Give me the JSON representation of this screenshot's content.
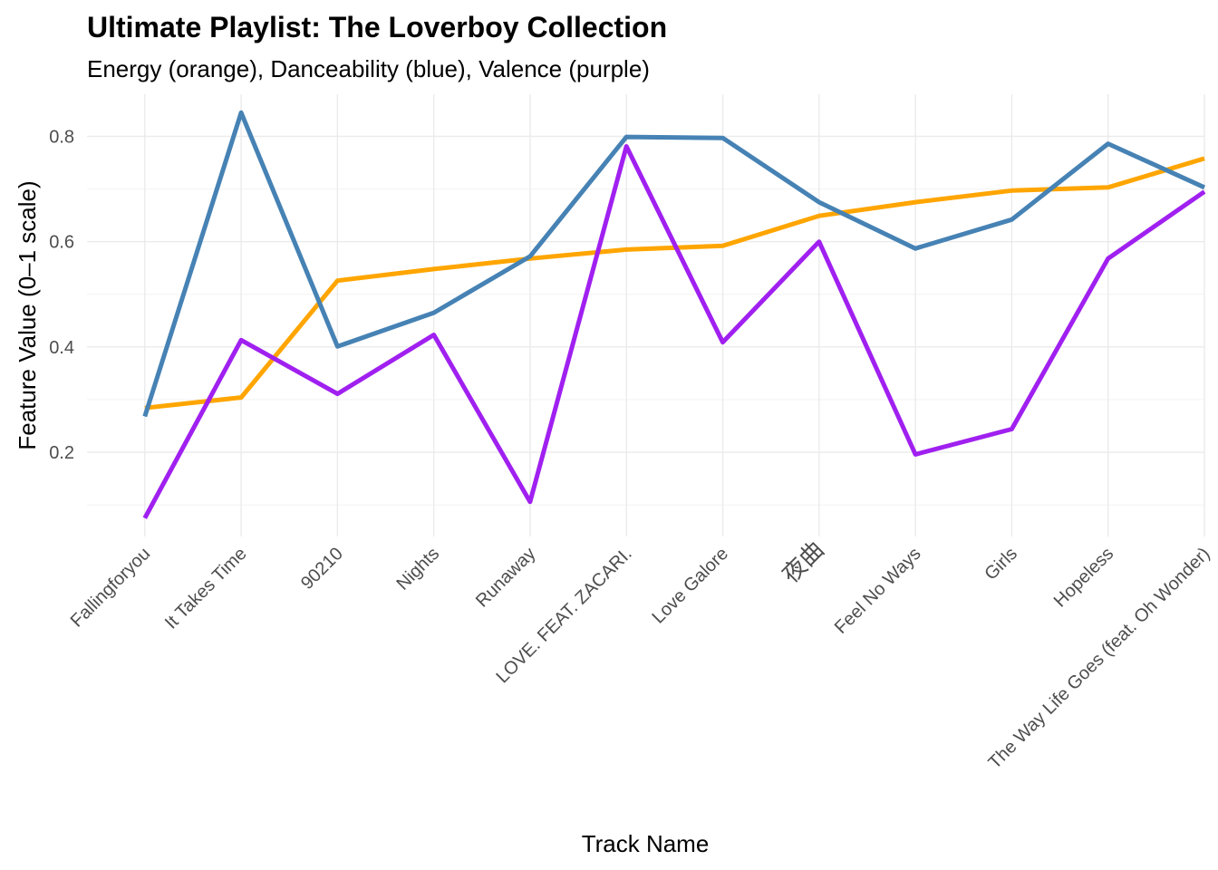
{
  "chart_data": {
    "type": "line",
    "title": "Ultimate Playlist: The Loverboy Collection",
    "subtitle": "Energy (orange), Danceability (blue), Valence (purple)",
    "xlabel": "Track Name",
    "ylabel": "Feature Value (0–1 scale)",
    "ylim": [
      0.04,
      0.88
    ],
    "y_ticks": [
      0.2,
      0.4,
      0.6,
      0.8
    ],
    "y_tick_labels": [
      "0.2",
      "0.4",
      "0.6",
      "0.8"
    ],
    "grid": true,
    "legend": "none",
    "categories": [
      "Fallingforyou",
      "It Takes Time",
      "90210",
      "Nights",
      "Runaway",
      "LOVE. FEAT. ZACARI.",
      "Love Galore",
      "夜曲",
      "Feel No Ways",
      "Girls",
      "Hopeless",
      "The Way Life Goes (feat. Oh Wonder)"
    ],
    "series": [
      {
        "name": "Energy",
        "color": "#FFA500",
        "values": [
          0.284,
          0.304,
          0.526,
          0.548,
          0.568,
          0.585,
          0.592,
          0.649,
          0.675,
          0.697,
          0.703,
          0.758
        ]
      },
      {
        "name": "Danceability",
        "color": "#4682B4",
        "values": [
          0.268,
          0.845,
          0.401,
          0.465,
          0.572,
          0.799,
          0.797,
          0.675,
          0.587,
          0.642,
          0.786,
          0.703
        ]
      },
      {
        "name": "Valence",
        "color": "#A020F0",
        "values": [
          0.075,
          0.413,
          0.311,
          0.423,
          0.106,
          0.781,
          0.409,
          0.6,
          0.196,
          0.244,
          0.568,
          0.695
        ]
      }
    ]
  }
}
